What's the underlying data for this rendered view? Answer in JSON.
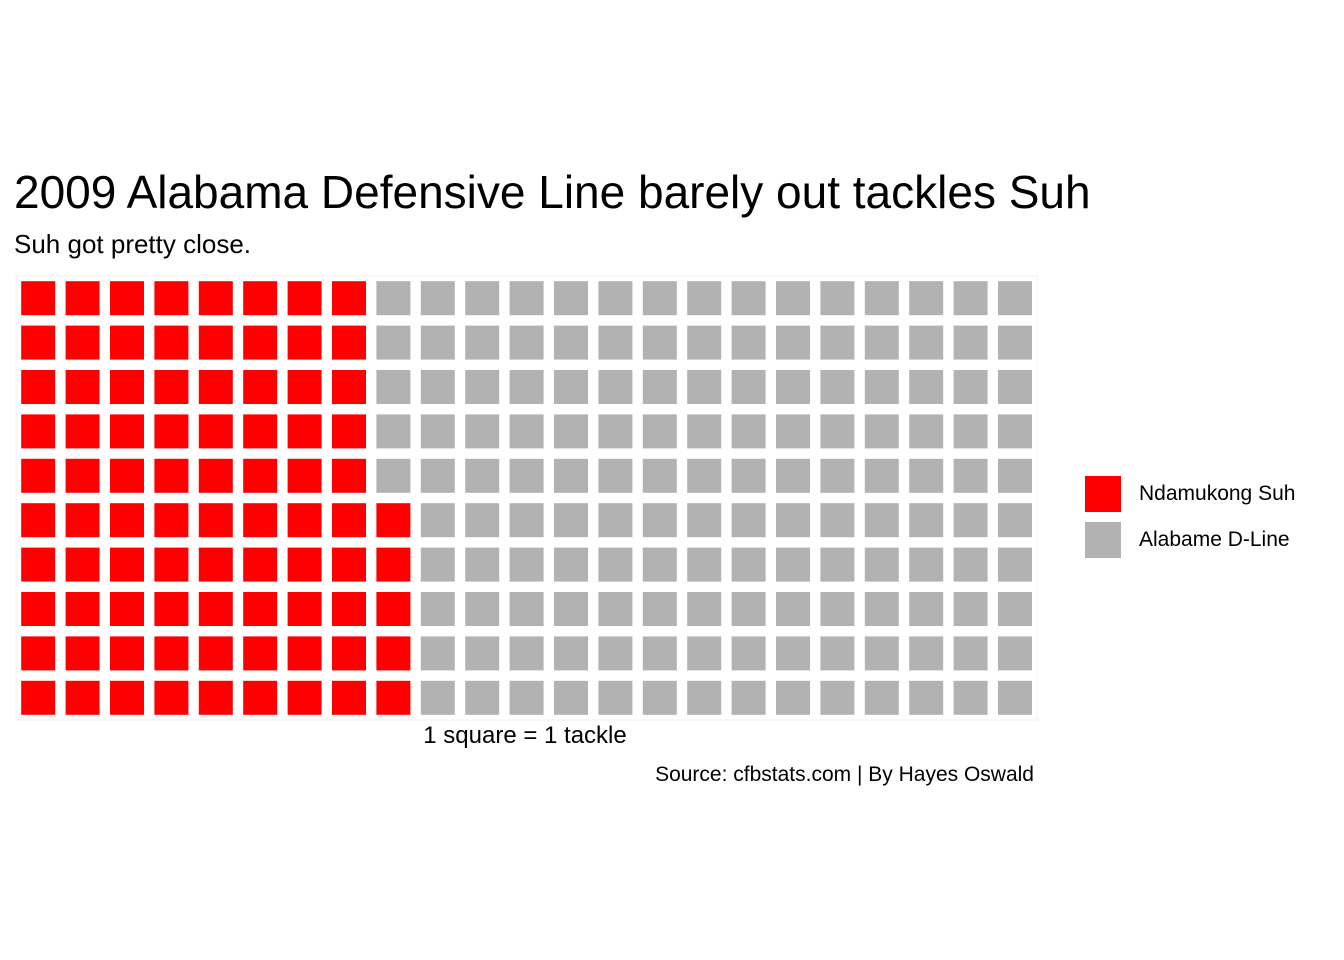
{
  "title": "2009 Alabama Defensive Line barely out tackles Suh",
  "subtitle": "Suh got pretty close.",
  "caption": "Source: cfbstats.com | By Hayes Oswald",
  "chart_data": {
    "type": "waffle",
    "rows": 10,
    "xlabel": "1 square = 1 tackle",
    "series": [
      {
        "name": "Ndamukong Suh",
        "value": 85,
        "color": "#ff0000"
      },
      {
        "name": "Alabame D-Line",
        "value": 145,
        "color": "#b2b2b2"
      }
    ],
    "legend_position": "right"
  }
}
